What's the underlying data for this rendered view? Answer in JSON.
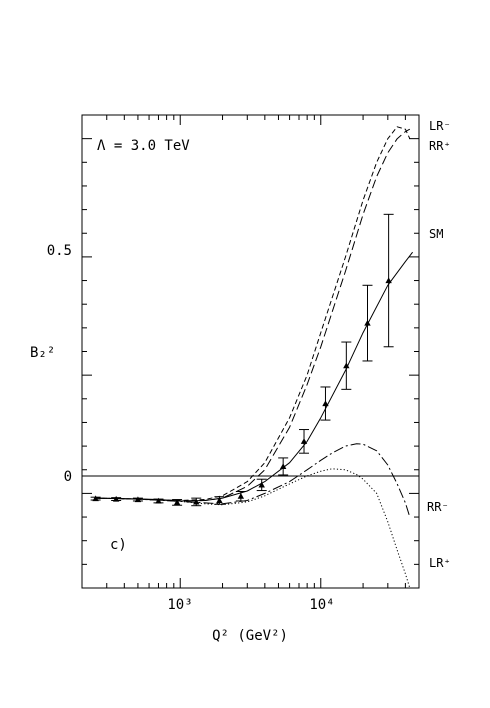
{
  "chart_data": {
    "type": "line",
    "title": "",
    "annotation": "Λ = 3.0 TeV",
    "panel_label": "c)",
    "xlabel": "Q² (GeV²)",
    "ylabel": "B₂²",
    "xscale": "log",
    "xlim": [
      200,
      50000
    ],
    "ylim": [
      -0.2,
      0.8
    ],
    "x_tick_labels": [
      "10³",
      "10⁴"
    ],
    "y_tick_labels": [
      "0",
      "0.5"
    ],
    "reference_line_y": 0,
    "grid": false,
    "legend": "curve labels at right edge",
    "series": [
      {
        "name": "LR⁻",
        "style": "short-dash",
        "x": [
          250,
          500,
          1000,
          1500,
          2000,
          3000,
          4000,
          6000,
          8000,
          10000,
          15000,
          20000,
          25000,
          30000,
          35000,
          40000,
          43000
        ],
        "y": [
          -0.01,
          -0.012,
          -0.015,
          -0.013,
          -0.005,
          0.025,
          0.065,
          0.16,
          0.25,
          0.34,
          0.5,
          0.62,
          0.7,
          0.75,
          0.775,
          0.77,
          0.75
        ]
      },
      {
        "name": "RR⁺",
        "style": "long-dash",
        "x": [
          250,
          500,
          1000,
          1500,
          2000,
          3000,
          4000,
          6000,
          8000,
          10000,
          15000,
          20000,
          25000,
          30000,
          35000,
          40000,
          43000
        ],
        "y": [
          -0.01,
          -0.012,
          -0.016,
          -0.015,
          -0.01,
          0.015,
          0.05,
          0.14,
          0.23,
          0.31,
          0.47,
          0.59,
          0.67,
          0.72,
          0.75,
          0.765,
          0.77
        ]
      },
      {
        "name": "SM",
        "style": "solid",
        "x": [
          250,
          400,
          700,
          1000,
          1500,
          2000,
          3000,
          4000,
          6000,
          8000,
          10000,
          15000,
          20000,
          30000,
          40000,
          45000
        ],
        "y": [
          -0.01,
          -0.011,
          -0.013,
          -0.016,
          -0.015,
          -0.01,
          0.005,
          0.025,
          0.065,
          0.11,
          0.16,
          0.26,
          0.34,
          0.44,
          0.49,
          0.51
        ]
      },
      {
        "name": "RR⁻",
        "style": "long-dash-dot",
        "x": [
          250,
          500,
          1000,
          1500,
          2000,
          3000,
          4000,
          6000,
          8000,
          10000,
          12000,
          15000,
          18000,
          20000,
          25000,
          30000,
          35000,
          40000,
          43000
        ],
        "y": [
          -0.01,
          -0.012,
          -0.017,
          -0.02,
          -0.022,
          -0.015,
          0.0,
          0.025,
          0.05,
          0.07,
          0.085,
          0.1,
          0.105,
          0.104,
          0.09,
          0.06,
          0.02,
          -0.02,
          -0.05
        ]
      },
      {
        "name": "LR⁺",
        "style": "dotted",
        "x": [
          250,
          500,
          1000,
          1500,
          2000,
          3000,
          4000,
          6000,
          8000,
          10000,
          12000,
          15000,
          18000,
          20000,
          25000,
          30000,
          35000,
          40000,
          43000
        ],
        "y": [
          -0.01,
          -0.012,
          -0.017,
          -0.022,
          -0.024,
          -0.018,
          -0.005,
          0.02,
          0.037,
          0.047,
          0.052,
          0.05,
          0.04,
          0.03,
          0.0,
          -0.06,
          -0.12,
          -0.17,
          -0.2
        ]
      }
    ],
    "data_points": {
      "marker": "triangle",
      "x": [
        250,
        350,
        500,
        700,
        950,
        1300,
        1900,
        2700,
        3800,
        5400,
        7600,
        10800,
        15200,
        21500,
        30400
      ],
      "y": [
        -0.011,
        -0.012,
        -0.013,
        -0.016,
        -0.019,
        -0.018,
        -0.015,
        -0.006,
        0.018,
        0.057,
        0.11,
        0.19,
        0.27,
        0.36,
        0.45
      ],
      "err": [
        0.003,
        0.003,
        0.003,
        0.004,
        0.006,
        0.008,
        0.008,
        0.01,
        0.012,
        0.018,
        0.025,
        0.035,
        0.05,
        0.08,
        0.14
      ]
    }
  }
}
